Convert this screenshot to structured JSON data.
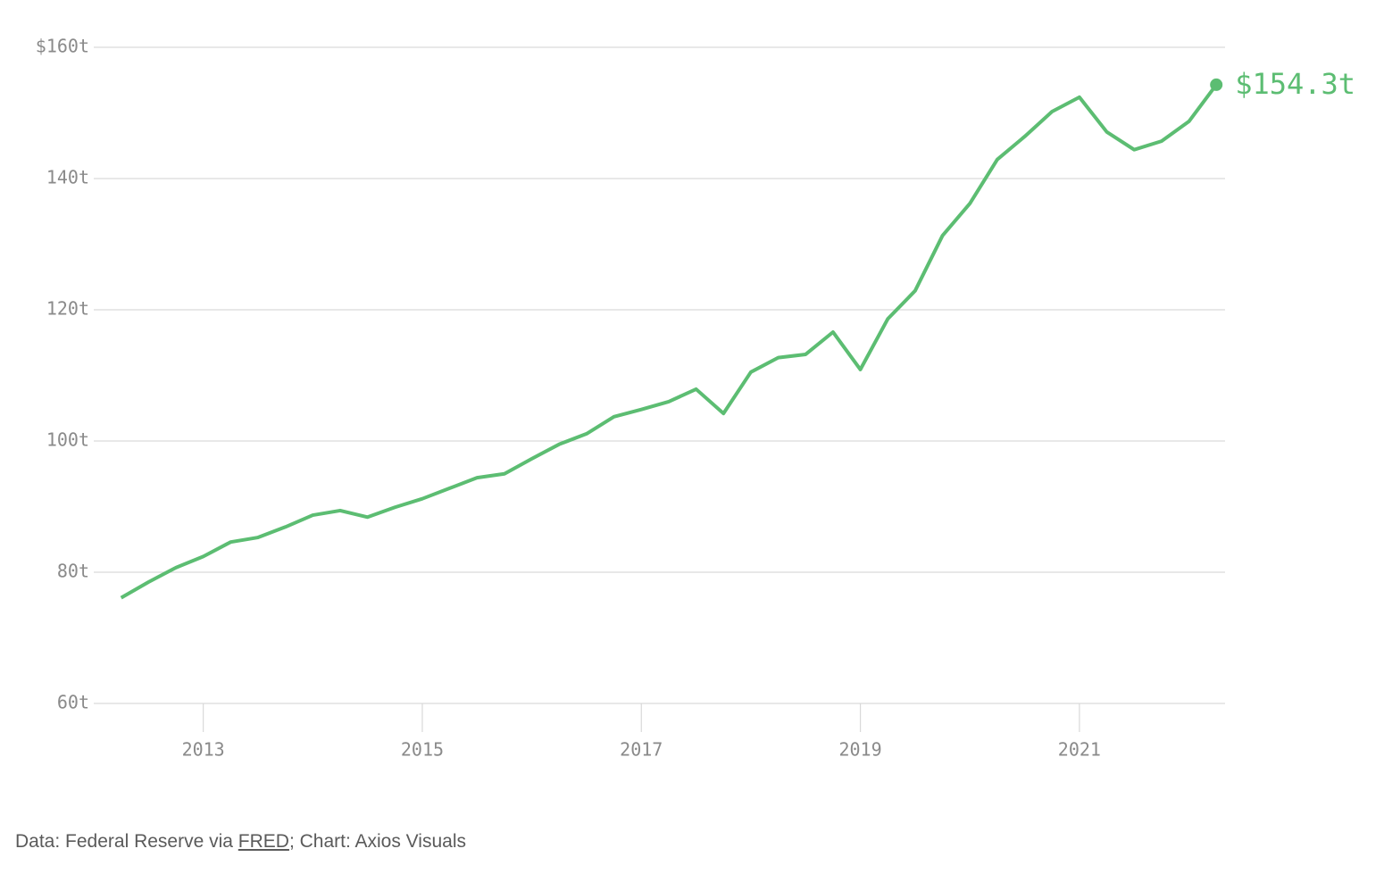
{
  "chart_data": {
    "type": "line",
    "x": [
      2012.25,
      2012.5,
      2012.75,
      2013.0,
      2013.25,
      2013.5,
      2013.75,
      2014.0,
      2014.25,
      2014.5,
      2014.75,
      2015.0,
      2015.25,
      2015.5,
      2015.75,
      2016.0,
      2016.25,
      2016.5,
      2016.75,
      2017.0,
      2017.25,
      2017.5,
      2017.75,
      2018.0,
      2018.25,
      2018.5,
      2018.75,
      2019.0,
      2019.25,
      2019.5,
      2019.75,
      2020.0,
      2020.25,
      2020.5,
      2020.75,
      2021.0,
      2021.25,
      2021.5,
      2021.75,
      2022.0,
      2022.25
    ],
    "series": [
      {
        "color": "#5cbd72",
        "values": [
          76.1,
          78.5,
          80.7,
          82.4,
          84.6,
          85.3,
          86.9,
          88.7,
          89.4,
          88.4,
          89.9,
          91.2,
          92.8,
          94.4,
          95.0,
          97.3,
          99.5,
          101.1,
          103.7,
          104.8,
          106.0,
          107.9,
          104.2,
          110.5,
          112.7,
          113.2,
          116.6,
          110.9,
          118.6,
          122.9,
          131.3,
          136.2,
          142.9,
          146.4,
          150.2,
          152.4,
          147.1,
          144.4,
          145.7,
          148.7,
          154.3
        ],
        "value_labels": [
          null,
          null,
          null,
          null,
          null,
          null,
          null,
          null,
          null,
          null,
          null,
          null,
          null,
          null,
          null,
          null,
          null,
          null,
          null,
          null,
          null,
          null,
          null,
          null,
          null,
          null,
          null,
          null,
          null,
          null,
          null,
          null,
          null,
          null,
          null,
          null,
          null,
          null,
          null,
          null,
          "$154.3t"
        ]
      }
    ],
    "xlim": [
      2012,
      2022.33
    ],
    "xticks": [
      2013,
      2015,
      2017,
      2019,
      2021
    ],
    "ylim": [
      60,
      160
    ],
    "yticks": [
      {
        "value": 60,
        "label": "60t"
      },
      {
        "value": 80,
        "label": "80t"
      },
      {
        "value": 100,
        "label": "100t"
      },
      {
        "value": 120,
        "label": "120t"
      },
      {
        "value": 140,
        "label": "140t"
      },
      {
        "value": 160,
        "label": "$160t"
      }
    ],
    "grid": true,
    "source": {
      "prefix": "Data: Federal Reserve via ",
      "link": "FRED",
      "suffix": "; Chart: Axios Visuals"
    }
  }
}
